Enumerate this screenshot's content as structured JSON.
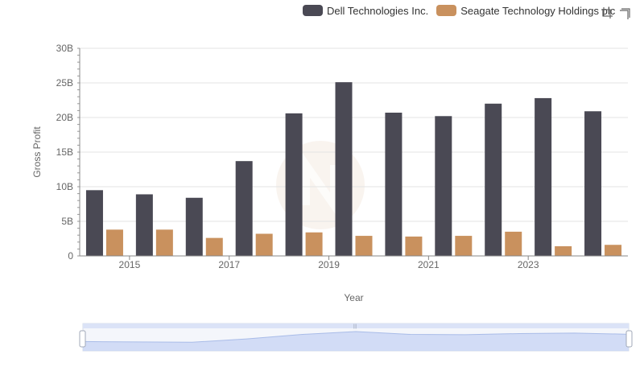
{
  "chart_data": {
    "type": "bar",
    "title": "",
    "xlabel": "Year",
    "ylabel": "Gross Profit",
    "x": [
      2014,
      2015,
      2016,
      2017,
      2018,
      2019,
      2020,
      2021,
      2022,
      2023,
      2024
    ],
    "xticks": [
      "2015",
      "2017",
      "2019",
      "2021",
      "2023"
    ],
    "yticks": [
      "0",
      "5B",
      "10B",
      "15B",
      "20B",
      "25B",
      "30B"
    ],
    "ylim": [
      0,
      30
    ],
    "grid": true,
    "legend_position": "top-right",
    "series": [
      {
        "name": "Dell Technologies Inc.",
        "color": "#4a4954",
        "values": [
          9.5,
          8.9,
          8.4,
          13.7,
          20.6,
          25.1,
          20.7,
          20.2,
          22.0,
          22.8,
          20.9
        ]
      },
      {
        "name": "Seagate Technology Holdings plc",
        "color": "#c9915e",
        "values": [
          3.8,
          3.8,
          2.6,
          3.2,
          3.4,
          2.9,
          2.8,
          2.9,
          3.5,
          1.4,
          1.6
        ]
      }
    ]
  },
  "legend": {
    "items": [
      {
        "label": "Dell Technologies Inc.",
        "color": "#4a4954"
      },
      {
        "label": "Seagate Technology Holdings plc",
        "color": "#c9915e"
      }
    ]
  },
  "toolbar": {
    "icons": [
      "zoom-icon",
      "restore-icon"
    ]
  },
  "data_zoom": {
    "start_percent": 0,
    "end_percent": 100
  }
}
